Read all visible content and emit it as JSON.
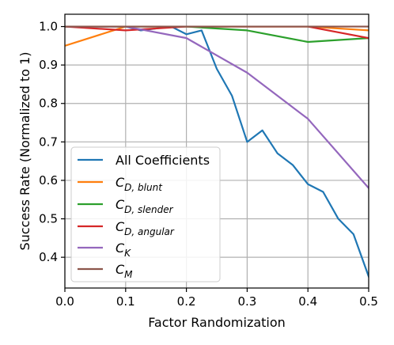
{
  "chart_data": {
    "type": "line",
    "xlabel": "Factor Randomization",
    "ylabel": "Success Rate (Normalized to 1)",
    "xlim": [
      0.0,
      0.5
    ],
    "ylim": [
      0.32,
      1.032
    ],
    "xticks": [
      "0.0",
      "0.1",
      "0.2",
      "0.3",
      "0.4",
      "0.5"
    ],
    "yticks": [
      "0.4",
      "0.5",
      "0.6",
      "0.7",
      "0.8",
      "0.9",
      "1.0"
    ],
    "grid": true,
    "legend_position": "lower-left",
    "series": [
      {
        "name": "All Coefficients",
        "color": "#1f77b4",
        "x": [
          0.0,
          0.1,
          0.125,
          0.175,
          0.2,
          0.225,
          0.25,
          0.275,
          0.3,
          0.325,
          0.35,
          0.375,
          0.4,
          0.425,
          0.45,
          0.475,
          0.5
        ],
        "y": [
          1.0,
          1.0,
          0.99,
          1.0,
          0.98,
          0.99,
          0.89,
          0.82,
          0.7,
          0.73,
          0.67,
          0.64,
          0.59,
          0.57,
          0.5,
          0.46,
          0.35
        ]
      },
      {
        "name": "C",
        "sub": "D, blunt",
        "color": "#ff7f0e",
        "x": [
          0.0,
          0.1,
          0.2,
          0.3,
          0.4,
          0.5
        ],
        "y": [
          0.95,
          1.0,
          1.0,
          1.0,
          1.0,
          0.99
        ]
      },
      {
        "name": "C",
        "sub": "D, slender",
        "color": "#2ca02c",
        "x": [
          0.0,
          0.1,
          0.2,
          0.3,
          0.4,
          0.5
        ],
        "y": [
          1.0,
          1.0,
          1.0,
          0.99,
          0.96,
          0.97
        ]
      },
      {
        "name": "C",
        "sub": "D, angular",
        "color": "#d62728",
        "x": [
          0.0,
          0.1,
          0.2,
          0.3,
          0.4,
          0.5
        ],
        "y": [
          1.0,
          0.99,
          1.0,
          1.0,
          1.0,
          0.97
        ]
      },
      {
        "name": "C",
        "sub": "K",
        "color": "#9467bd",
        "x": [
          0.0,
          0.1,
          0.2,
          0.3,
          0.4,
          0.5
        ],
        "y": [
          1.0,
          1.0,
          0.97,
          0.88,
          0.76,
          0.58
        ]
      },
      {
        "name": "C",
        "sub": "M",
        "color": "#8c564b",
        "x": [
          0.0,
          0.1,
          0.2,
          0.3,
          0.4,
          0.5
        ],
        "y": [
          1.0,
          1.0,
          1.0,
          1.0,
          1.0,
          1.0
        ]
      }
    ]
  }
}
